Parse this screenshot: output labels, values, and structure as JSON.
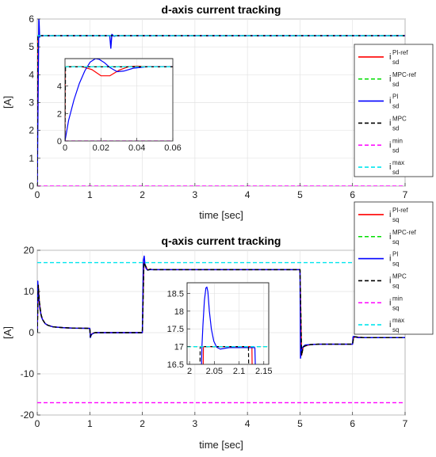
{
  "chart_data": [
    {
      "type": "line",
      "title": "d-axis current tracking",
      "xlabel": "time [sec]",
      "ylabel": "[A]",
      "xlim": [
        0,
        7
      ],
      "ylim": [
        0,
        6
      ],
      "xticks": [
        "0",
        "1",
        "2",
        "3",
        "4",
        "5",
        "6",
        "7"
      ],
      "yticks": [
        "0",
        "1",
        "2",
        "3",
        "4",
        "5",
        "6"
      ],
      "grid": true,
      "legend_position": "right",
      "series": [
        {
          "name": "PI-ref",
          "sub": "sd",
          "color": "#ff0000",
          "dash": "solid",
          "x": [
            0,
            0.002,
            0.03,
            0.06,
            7
          ],
          "y": [
            0,
            5.4,
            5.4,
            5.4,
            5.4
          ]
        },
        {
          "name": "MPC-ref",
          "sub": "sd",
          "color": "#00dd00",
          "dash": "dashed",
          "x": [
            0,
            0.002,
            0.06,
            7
          ],
          "y": [
            0,
            5.4,
            5.4,
            5.4
          ]
        },
        {
          "name": "PI",
          "sub": "sd",
          "color": "#0000ff",
          "dash": "solid",
          "x": [
            0,
            0.03,
            0.035,
            0.045,
            0.06,
            0.08,
            0.1,
            0.15,
            1.38,
            1.4,
            1.42,
            1.46,
            1.52,
            7
          ],
          "y": [
            0,
            6.0,
            5.9,
            5.35,
            5.4,
            5.4,
            5.4,
            5.4,
            5.4,
            4.95,
            5.45,
            5.38,
            5.4,
            5.4
          ]
        },
        {
          "name": "MPC",
          "sub": "sd",
          "color": "#000000",
          "dash": "dashed",
          "x": [
            0,
            0.001,
            7
          ],
          "y": [
            0,
            5.4,
            5.4
          ]
        },
        {
          "name": "min",
          "sub": "sd",
          "color": "#ff00ff",
          "dash": "dashed",
          "x": [
            0,
            7
          ],
          "y": [
            0,
            0
          ]
        },
        {
          "name": "max",
          "sub": "sd",
          "color": "#00e5ee",
          "dash": "dashed",
          "x": [
            0,
            7
          ],
          "y": [
            5.4,
            5.4
          ]
        }
      ],
      "inset": {
        "xlim": [
          0,
          0.06
        ],
        "ylim": [
          0,
          6
        ],
        "xticks": [
          "0",
          "0.02",
          "0.04",
          "0.06"
        ],
        "yticks": [
          "0",
          "2",
          "4"
        ],
        "series": [
          {
            "color": "#ff0000",
            "dash": "solid",
            "x": [
              0,
              0.0001,
              0.01,
              0.015,
              0.02,
              0.025,
              0.03,
              0.035,
              0.04,
              0.045,
              0.06
            ],
            "y": [
              0,
              5.4,
              5.4,
              5.2,
              4.75,
              4.75,
              5.15,
              5.4,
              5.45,
              5.4,
              5.4
            ]
          },
          {
            "color": "#00dd00",
            "dash": "dashed",
            "x": [
              0,
              0.0003,
              0.06
            ],
            "y": [
              5.4,
              5.4,
              5.4
            ]
          },
          {
            "color": "#0000ff",
            "dash": "solid",
            "x": [
              0,
              0.002,
              0.005,
              0.008,
              0.011,
              0.014,
              0.017,
              0.019,
              0.022,
              0.025,
              0.029,
              0.033,
              0.038,
              0.045,
              0.06
            ],
            "y": [
              0,
              1.5,
              3.0,
              4.2,
              5.1,
              5.75,
              6.0,
              5.95,
              5.7,
              5.35,
              5.05,
              5.1,
              5.3,
              5.4,
              5.4
            ]
          },
          {
            "color": "#000000",
            "dash": "dashed",
            "x": [
              0,
              0.0003,
              0.06
            ],
            "y": [
              0,
              5.4,
              5.4
            ]
          },
          {
            "color": "#ff00ff",
            "dash": "dashed",
            "x": [
              0,
              0.06
            ],
            "y": [
              0,
              0
            ]
          },
          {
            "color": "#00e5ee",
            "dash": "dashed",
            "x": [
              0,
              0.06
            ],
            "y": [
              5.4,
              5.4
            ]
          }
        ]
      }
    },
    {
      "type": "line",
      "title": "q-axis current tracking",
      "xlabel": "time [sec]",
      "ylabel": "[A]",
      "xlim": [
        0,
        7
      ],
      "ylim": [
        -20,
        20
      ],
      "xticks": [
        "0",
        "1",
        "2",
        "3",
        "4",
        "5",
        "6",
        "7"
      ],
      "yticks": [
        "-20",
        "-10",
        "0",
        "10",
        "20"
      ],
      "grid": true,
      "legend_position": "right",
      "series": [
        {
          "name": "PI-ref",
          "sub": "sq",
          "color": "#ff0000",
          "dash": "solid",
          "x": [
            0,
            0.02,
            0.04,
            0.07,
            0.1,
            0.15,
            0.2,
            0.3,
            0.5,
            0.7,
            1.0,
            1.01,
            1.03,
            1.06,
            1.1,
            1.2,
            2.0,
            2.03,
            2.1,
            2.15,
            2.2,
            5.0,
            5.03,
            5.06,
            5.1,
            5.2,
            5.35,
            6.0,
            6.02,
            6.05,
            6.1,
            6.2,
            7
          ],
          "y": [
            0,
            11.5,
            7.5,
            4.5,
            3.2,
            2.2,
            1.8,
            1.4,
            1.2,
            1.1,
            1.05,
            -1.0,
            -0.4,
            -0.15,
            0,
            0,
            0,
            17.0,
            15.2,
            15.4,
            15.3,
            15.3,
            -5.5,
            -3.5,
            -3.2,
            -2.9,
            -2.8,
            -2.8,
            -1.2,
            -1.0,
            -1.1,
            -1.2,
            -1.2
          ]
        },
        {
          "name": "MPC-ref",
          "sub": "sq",
          "color": "#00dd00",
          "dash": "dashed",
          "x": [
            0,
            0.02,
            0.04,
            0.07,
            0.1,
            0.15,
            0.2,
            0.3,
            0.5,
            0.7,
            1.0,
            1.01,
            1.03,
            1.06,
            1.1,
            1.2,
            2.0,
            2.03,
            2.1,
            2.15,
            2.2,
            5.0,
            5.03,
            5.06,
            5.1,
            5.2,
            5.35,
            6.0,
            6.02,
            6.05,
            6.1,
            6.2,
            7
          ],
          "y": [
            0,
            11.5,
            7.5,
            4.5,
            3.2,
            2.2,
            1.8,
            1.4,
            1.2,
            1.1,
            1.05,
            -1.0,
            -0.4,
            -0.15,
            0,
            0,
            0,
            17.0,
            15.2,
            15.4,
            15.3,
            15.3,
            -5.5,
            -3.5,
            -3.2,
            -2.9,
            -2.8,
            -2.8,
            -1.2,
            -1.0,
            -1.1,
            -1.2,
            -1.2
          ]
        },
        {
          "name": "PI",
          "sub": "sq",
          "color": "#0000ff",
          "dash": "solid",
          "x": [
            0,
            0.01,
            0.02,
            0.03,
            0.05,
            0.08,
            0.1,
            0.15,
            0.2,
            0.3,
            0.5,
            0.7,
            1.0,
            1.01,
            1.03,
            1.06,
            1.1,
            1.2,
            2.0,
            2.02,
            2.035,
            2.05,
            2.07,
            2.1,
            2.15,
            5.0,
            5.01,
            5.03,
            5.06,
            5.1,
            5.2,
            5.35,
            6.0,
            6.01,
            6.03,
            6.06,
            6.1,
            6.2,
            7
          ],
          "y": [
            0,
            12.5,
            10.5,
            8.5,
            5.8,
            3.8,
            3.2,
            2.2,
            1.8,
            1.4,
            1.2,
            1.1,
            1.05,
            -1.2,
            -0.5,
            -0.2,
            0,
            0,
            0,
            17.6,
            18.6,
            16.6,
            15.6,
            15.2,
            15.3,
            15.3,
            -6.2,
            -4.0,
            -3.4,
            -3.0,
            -2.9,
            -2.8,
            -2.8,
            -1.0,
            -0.9,
            -1.1,
            -1.2,
            -1.2,
            -1.2
          ]
        },
        {
          "name": "MPC",
          "sub": "sq",
          "color": "#000000",
          "dash": "dashed",
          "x": [
            0,
            0.02,
            0.04,
            0.07,
            0.1,
            0.15,
            0.2,
            0.3,
            0.5,
            0.7,
            1.0,
            1.01,
            1.03,
            1.06,
            1.1,
            1.2,
            2.0,
            2.03,
            2.1,
            2.15,
            2.2,
            5.0,
            5.03,
            5.06,
            5.1,
            5.2,
            5.35,
            6.0,
            6.02,
            6.05,
            6.1,
            6.2,
            7
          ],
          "y": [
            0,
            11.5,
            7.5,
            4.5,
            3.2,
            2.2,
            1.8,
            1.4,
            1.2,
            1.1,
            1.05,
            -1.0,
            -0.4,
            -0.15,
            0,
            0,
            0,
            17.0,
            15.2,
            15.4,
            15.3,
            15.3,
            -5.5,
            -3.5,
            -3.2,
            -2.9,
            -2.8,
            -2.8,
            -1.2,
            -1.0,
            -1.1,
            -1.2,
            -1.2
          ]
        },
        {
          "name": "min",
          "sub": "sq",
          "color": "#ff00ff",
          "dash": "dashed",
          "x": [
            0,
            7
          ],
          "y": [
            -17,
            -17
          ]
        },
        {
          "name": "max",
          "sub": "sq",
          "color": "#00e5ee",
          "dash": "dashed",
          "x": [
            0,
            7
          ],
          "y": [
            17,
            17
          ]
        }
      ],
      "inset": {
        "xlim": [
          1.995,
          2.16
        ],
        "ylim": [
          16.5,
          18.8
        ],
        "xticks": [
          "2",
          "2.05",
          "2.1",
          "2.15"
        ],
        "yticks": [
          "16.5",
          "17",
          "17.5",
          "18",
          "18.5"
        ],
        "series": [
          {
            "color": "#ff0000",
            "dash": "solid",
            "x": [
              2.0275,
              2.028,
              2.126,
              2.1265
            ],
            "y": [
              16.4,
              17.0,
              17.0,
              16.4
            ]
          },
          {
            "color": "#00dd00",
            "dash": "dashed",
            "x": [
              1.995,
              2.16
            ],
            "y": [
              17.0,
              17.0
            ]
          },
          {
            "color": "#0000ff",
            "dash": "solid",
            "x": [
              2.024,
              2.025,
              2.027,
              2.03,
              2.033,
              2.035,
              2.037,
              2.04,
              2.044,
              2.049,
              2.055,
              2.062,
              2.07,
              2.08,
              2.12,
              2.132,
              2.133
            ],
            "y": [
              16.4,
              17.0,
              17.6,
              18.3,
              18.65,
              18.68,
              18.55,
              18.0,
              17.5,
              17.15,
              16.98,
              16.93,
              16.95,
              16.97,
              16.97,
              16.97,
              16.4
            ]
          },
          {
            "color": "#000000",
            "dash": "dashed",
            "x": [
              2.021,
              2.0215,
              2.119,
              2.1195
            ],
            "y": [
              16.4,
              17.0,
              17.0,
              16.4
            ]
          },
          {
            "color": "#00e5ee",
            "dash": "dashed",
            "x": [
              1.995,
              2.16
            ],
            "y": [
              17.0,
              17.0
            ]
          }
        ]
      }
    }
  ]
}
